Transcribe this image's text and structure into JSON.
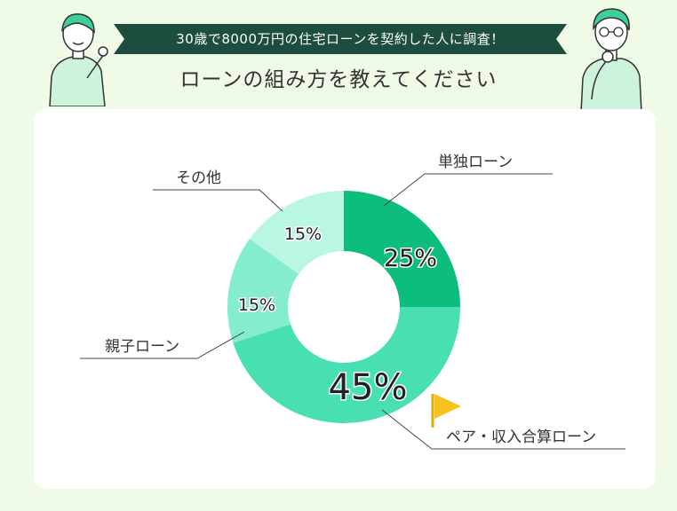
{
  "header": {
    "banner_text": "30歳で8000万円の住宅ローンを契約した人に調査！",
    "title": "ローンの組み方を教えてください"
  },
  "colors": {
    "background": "#effbe6",
    "banner": "#1d4d3e",
    "accent_flag": "#f6c21c"
  },
  "chart_data": {
    "type": "pie",
    "donut": true,
    "title": "ローンの組み方を教えてください",
    "slices": [
      {
        "label": "単独ローン",
        "value": 25,
        "display": "25%",
        "color": "#0dbd7c"
      },
      {
        "label": "ペア・収入合算ローン",
        "value": 45,
        "display": "45%",
        "color": "#48e0b2"
      },
      {
        "label": "親子ローン",
        "value": 15,
        "display": "15%",
        "color": "#85eccd"
      },
      {
        "label": "その他",
        "value": 15,
        "display": "15%",
        "color": "#b9f6e3"
      }
    ]
  }
}
